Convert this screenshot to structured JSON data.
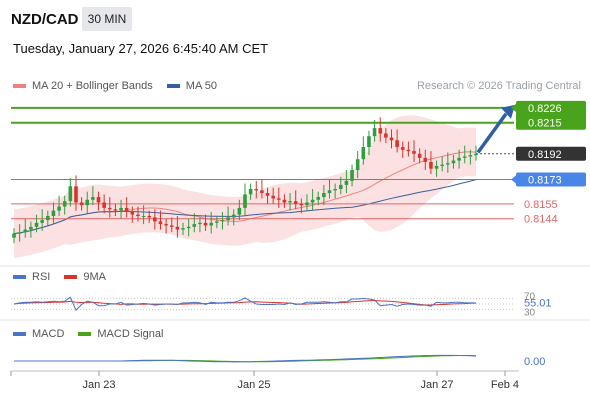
{
  "header": {
    "pair": "NZD/CAD",
    "timeframe": "30 MIN",
    "datetime": "Tuesday, January 27, 2026 6:45:40 AM CET",
    "credit": "Research © 2026 Trading Central"
  },
  "colors": {
    "up": "#2e9e3e",
    "down": "#d9342b",
    "ma20": "#f08080",
    "bollinger_fill": "#fadcdc",
    "ma50": "#3a5f9e",
    "resistance": "#4aa31c",
    "pivot": "#4a86e8",
    "support": "#e06666",
    "rsi": "#4a74c9",
    "rsi_ma": "#d9342b",
    "macd": "#4a74c9",
    "macd_signal": "#4aa31c",
    "last_price_bg": "#333333"
  },
  "main_legend": [
    {
      "label": "MA 20 + Bollinger Bands",
      "color": "#f08080"
    },
    {
      "label": "MA 50",
      "color": "#3a5f9e"
    }
  ],
  "rsi_legend": [
    {
      "label": "RSI",
      "color": "#4a74c9"
    },
    {
      "label": "9MA",
      "color": "#d9342b"
    }
  ],
  "macd_legend": [
    {
      "label": "MACD",
      "color": "#4a74c9"
    },
    {
      "label": "MACD Signal",
      "color": "#4aa31c"
    }
  ],
  "chart_data": {
    "type": "candlestick",
    "ylim": [
      0.8112,
      0.8234
    ],
    "levels": [
      {
        "label": "0.8226",
        "value": 0.8226,
        "kind": "resistance"
      },
      {
        "label": "0.8215",
        "value": 0.8215,
        "kind": "resistance"
      },
      {
        "label": "0.8192",
        "value": 0.8192,
        "kind": "last"
      },
      {
        "label": "0.8173",
        "value": 0.8173,
        "kind": "pivot"
      },
      {
        "label": "0.8155",
        "value": 0.8155,
        "kind": "support"
      },
      {
        "label": "0.8144",
        "value": 0.8144,
        "kind": "support"
      }
    ],
    "x_ticks": [
      "Jan 23",
      "Jan 25",
      "Jan 27",
      "Feb 4"
    ],
    "close": [
      0.8133,
      0.8134,
      0.8136,
      0.8138,
      0.8141,
      0.8143,
      0.8146,
      0.815,
      0.8153,
      0.8157,
      0.8168,
      0.8156,
      0.8154,
      0.8158,
      0.816,
      0.8156,
      0.8152,
      0.8151,
      0.815,
      0.8152,
      0.8149,
      0.8147,
      0.8146,
      0.8146,
      0.8145,
      0.8142,
      0.814,
      0.8139,
      0.8138,
      0.8136,
      0.8137,
      0.8138,
      0.814,
      0.8141,
      0.8139,
      0.8141,
      0.8142,
      0.8143,
      0.8145,
      0.8147,
      0.8152,
      0.8162,
      0.8166,
      0.8165,
      0.8163,
      0.8161,
      0.8159,
      0.8158,
      0.8156,
      0.8157,
      0.8155,
      0.8154,
      0.8156,
      0.8158,
      0.816,
      0.8163,
      0.8165,
      0.8166,
      0.8169,
      0.8172,
      0.818,
      0.8188,
      0.8197,
      0.8205,
      0.8211,
      0.8207,
      0.8204,
      0.8202,
      0.8197,
      0.8195,
      0.8194,
      0.8192,
      0.8189,
      0.8186,
      0.8181,
      0.8183,
      0.8184,
      0.8185,
      0.8187,
      0.8189,
      0.819,
      0.8191,
      0.8192
    ],
    "rsi": {
      "label": "55.01",
      "value": 55.01,
      "levels": [
        "70",
        "30"
      ]
    },
    "macd": {
      "label": "0.00",
      "value": 0.0
    }
  }
}
